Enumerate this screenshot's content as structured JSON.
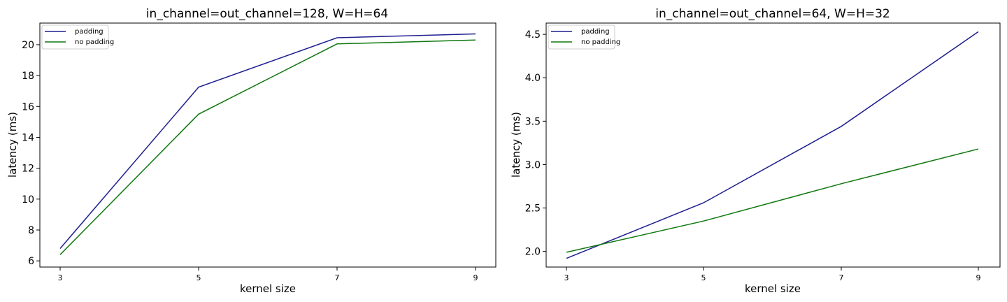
{
  "chart_data": [
    {
      "type": "line",
      "title": "in_channel=out_channel=128, W=H=64",
      "xlabel": "kernel size",
      "ylabel": "latency (ms)",
      "x": [
        3,
        5,
        7,
        9
      ],
      "xticks": [
        "3",
        "5",
        "7",
        "9"
      ],
      "yticks": [
        "6",
        "8",
        "10",
        "12",
        "14",
        "16",
        "18",
        "20"
      ],
      "ylim": [
        5.6,
        21.4
      ],
      "grid": false,
      "legend_position": "upper-left",
      "series": [
        {
          "name": "padding",
          "color": "#1f1f8f",
          "values": [
            6.8,
            17.25,
            20.45,
            20.7
          ]
        },
        {
          "name": "no padding",
          "color": "#0f780f",
          "values": [
            6.4,
            15.5,
            20.05,
            20.3
          ]
        }
      ]
    },
    {
      "type": "line",
      "title": "in_channel=out_channel=64, W=H=32",
      "xlabel": "kernel size",
      "ylabel": "latency (ms)",
      "x": [
        3,
        5,
        7,
        9
      ],
      "xticks": [
        "3",
        "5",
        "7",
        "9"
      ],
      "yticks": [
        "2.0",
        "2.5",
        "3.0",
        "3.5",
        "4.0",
        "4.5"
      ],
      "ylim": [
        1.82,
        4.63
      ],
      "grid": false,
      "legend_position": "upper-left",
      "series": [
        {
          "name": "padding",
          "color": "#1f1f8f",
          "values": [
            1.92,
            2.56,
            3.44,
            4.53
          ]
        },
        {
          "name": "no padding",
          "color": "#0f780f",
          "values": [
            1.99,
            2.35,
            2.78,
            3.18
          ]
        }
      ]
    }
  ]
}
